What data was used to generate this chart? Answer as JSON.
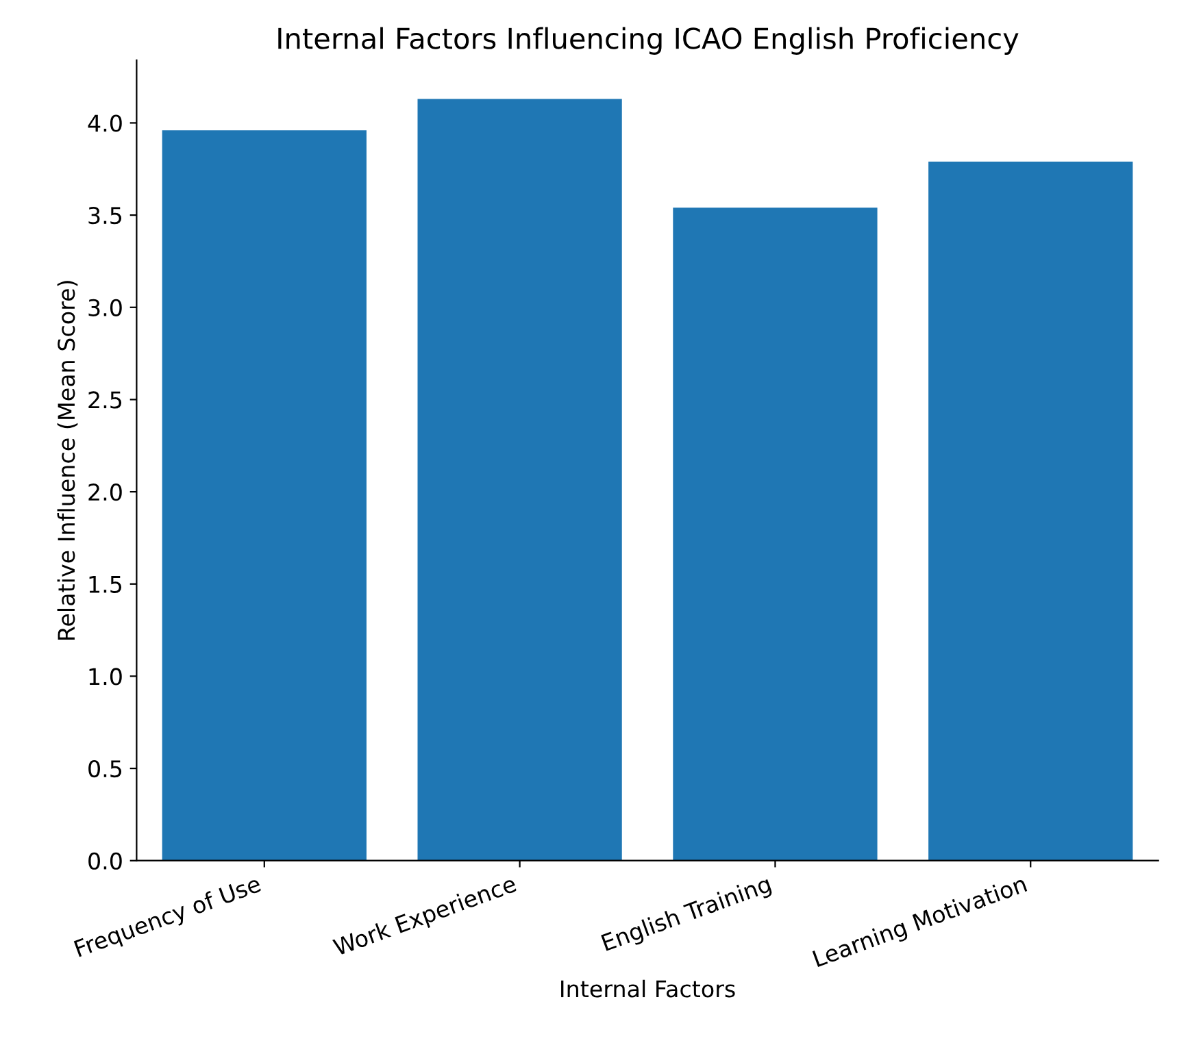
{
  "chart_data": {
    "type": "bar",
    "title": "Internal Factors Influencing ICAO English Proficiency",
    "xlabel": "Internal Factors",
    "ylabel": "Relative Influence (Mean Score)",
    "categories": [
      "Frequency of Use",
      "Work Experience",
      "English Training",
      "Learning Motivation"
    ],
    "values": [
      3.96,
      4.13,
      3.54,
      3.79
    ],
    "color": "#1f77b4",
    "ylim": [
      0,
      4.34
    ],
    "yticks": [
      {
        "value": 0,
        "label": "0.0"
      },
      {
        "value": 0.5,
        "label": "0.5"
      },
      {
        "value": 1,
        "label": "1.0"
      },
      {
        "value": 1.5,
        "label": "1.5"
      },
      {
        "value": 2,
        "label": "2.0"
      },
      {
        "value": 2.5,
        "label": "2.5"
      },
      {
        "value": 3,
        "label": "3.0"
      },
      {
        "value": 3.5,
        "label": "3.5"
      },
      {
        "value": 4,
        "label": "4.0"
      }
    ],
    "grid": false,
    "legend": false
  }
}
